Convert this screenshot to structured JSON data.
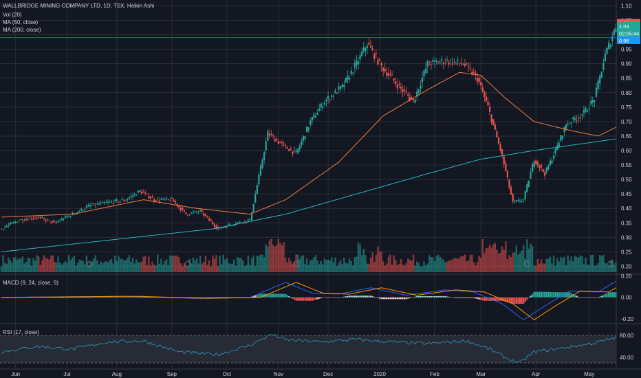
{
  "header": {
    "symbol_line": "WALLBRIDGE MINING COMPANY LTD, 1D, TSX, Heikin Ashi",
    "vol_label": "Vol (20)",
    "ma50_label": "MA (50, close)",
    "ma200_label": "MA (200, close)"
  },
  "macd_label": "MACD (9, 24, close, 9)",
  "rsi_label": "RSI (17, close)",
  "colors": {
    "background": "#131722",
    "grid": "#2a2e39",
    "up": "#26a69a",
    "down": "#ef5350",
    "ma50": "#f57c3d",
    "ma200": "#26b6c9",
    "macd_line": "#2962ff",
    "signal_line": "#ff9800",
    "rsi_line": "#2f8fb8",
    "hline": "#2962ff",
    "axis_text": "#d1d4dc"
  },
  "price_axis": {
    "ticks": [
      "1.10",
      "1.05",
      "1.00",
      "0.95",
      "0.90",
      "0.85",
      "0.80",
      "0.75",
      "0.70",
      "0.65",
      "0.60",
      "0.55",
      "0.50",
      "0.45",
      "0.40",
      "0.35",
      "0.30",
      "0.25",
      "0.20"
    ],
    "badges": [
      {
        "text": "1.04",
        "color": "#ef5350",
        "value": 1.04
      },
      {
        "text": "1.03",
        "color": "#26a69a",
        "value": 1.03
      },
      {
        "text": "02:05:44",
        "color": "#26a69a",
        "value": 1.005
      },
      {
        "text": "0.98",
        "color": "#2196f3",
        "value": 0.98
      }
    ]
  },
  "macd_axis": {
    "ticks": [
      "0.20",
      "0.00",
      "-0.20"
    ]
  },
  "rsi_axis": {
    "ticks": [
      "80.00",
      "40.00"
    ]
  },
  "x_axis": {
    "labels": [
      "Jun",
      "Jul",
      "Aug",
      "Sep",
      "Oct",
      "Nov",
      "Dec",
      "2020",
      "Feb",
      "Mar",
      "Apr",
      "May"
    ]
  },
  "chart_data": {
    "type": "candlestick",
    "style": "Heikin Ashi",
    "ylim": [
      0.175,
      1.12
    ],
    "horizontal_line": 0.99,
    "grid": true,
    "price_keypoints": [
      [
        0,
        0.33
      ],
      [
        10,
        0.36
      ],
      [
        20,
        0.37
      ],
      [
        30,
        0.35
      ],
      [
        40,
        0.38
      ],
      [
        50,
        0.41
      ],
      [
        60,
        0.42
      ],
      [
        70,
        0.43
      ],
      [
        78,
        0.46
      ],
      [
        86,
        0.43
      ],
      [
        96,
        0.43
      ],
      [
        104,
        0.38
      ],
      [
        112,
        0.39
      ],
      [
        122,
        0.33
      ],
      [
        132,
        0.35
      ],
      [
        140,
        0.36
      ],
      [
        150,
        0.66
      ],
      [
        158,
        0.62
      ],
      [
        166,
        0.59
      ],
      [
        174,
        0.7
      ],
      [
        182,
        0.77
      ],
      [
        192,
        0.82
      ],
      [
        200,
        0.9
      ],
      [
        206,
        0.97
      ],
      [
        214,
        0.89
      ],
      [
        224,
        0.82
      ],
      [
        232,
        0.77
      ],
      [
        240,
        0.9
      ],
      [
        250,
        0.91
      ],
      [
        260,
        0.9
      ],
      [
        268,
        0.85
      ],
      [
        274,
        0.75
      ],
      [
        282,
        0.58
      ],
      [
        288,
        0.42
      ],
      [
        294,
        0.43
      ],
      [
        300,
        0.57
      ],
      [
        306,
        0.52
      ],
      [
        312,
        0.6
      ],
      [
        318,
        0.69
      ],
      [
        328,
        0.73
      ],
      [
        334,
        0.78
      ],
      [
        340,
        0.93
      ],
      [
        346,
        1.03
      ]
    ],
    "ma50_keypoints": [
      [
        0,
        0.37
      ],
      [
        40,
        0.38
      ],
      [
        80,
        0.43
      ],
      [
        110,
        0.4
      ],
      [
        140,
        0.38
      ],
      [
        160,
        0.43
      ],
      [
        190,
        0.56
      ],
      [
        215,
        0.72
      ],
      [
        240,
        0.81
      ],
      [
        258,
        0.87
      ],
      [
        270,
        0.86
      ],
      [
        284,
        0.78
      ],
      [
        300,
        0.7
      ],
      [
        320,
        0.67
      ],
      [
        336,
        0.65
      ],
      [
        346,
        0.68
      ]
    ],
    "ma200_keypoints": [
      [
        0,
        0.25
      ],
      [
        60,
        0.29
      ],
      [
        120,
        0.33
      ],
      [
        160,
        0.38
      ],
      [
        200,
        0.45
      ],
      [
        240,
        0.52
      ],
      [
        270,
        0.57
      ],
      [
        300,
        0.6
      ],
      [
        346,
        0.64
      ]
    ],
    "macd_ylim": [
      -0.24,
      0.21
    ],
    "macd_keypoints": [
      [
        0,
        0
      ],
      [
        70,
        0.01
      ],
      [
        110,
        -0.01
      ],
      [
        140,
        0
      ],
      [
        160,
        0.14
      ],
      [
        175,
        0.04
      ],
      [
        190,
        0.03
      ],
      [
        208,
        0.09
      ],
      [
        228,
        0.02
      ],
      [
        250,
        0.07
      ],
      [
        266,
        0.05
      ],
      [
        282,
        -0.06
      ],
      [
        294,
        -0.21
      ],
      [
        306,
        -0.08
      ],
      [
        320,
        0.06
      ],
      [
        336,
        0.05
      ],
      [
        346,
        0.15
      ]
    ],
    "rsi_ylim": [
      20,
      100
    ],
    "rsi_band": [
      30,
      80
    ],
    "rsi_keypoints": [
      [
        0,
        50
      ],
      [
        20,
        60
      ],
      [
        40,
        55
      ],
      [
        60,
        68
      ],
      [
        80,
        70
      ],
      [
        100,
        50
      ],
      [
        122,
        45
      ],
      [
        140,
        62
      ],
      [
        152,
        82
      ],
      [
        160,
        72
      ],
      [
        180,
        68
      ],
      [
        200,
        73
      ],
      [
        210,
        70
      ],
      [
        220,
        68
      ],
      [
        240,
        65
      ],
      [
        262,
        70
      ],
      [
        275,
        55
      ],
      [
        286,
        36
      ],
      [
        292,
        30
      ],
      [
        300,
        50
      ],
      [
        318,
        58
      ],
      [
        334,
        66
      ],
      [
        346,
        76
      ]
    ],
    "volume_ylim": [
      0,
      1
    ]
  }
}
